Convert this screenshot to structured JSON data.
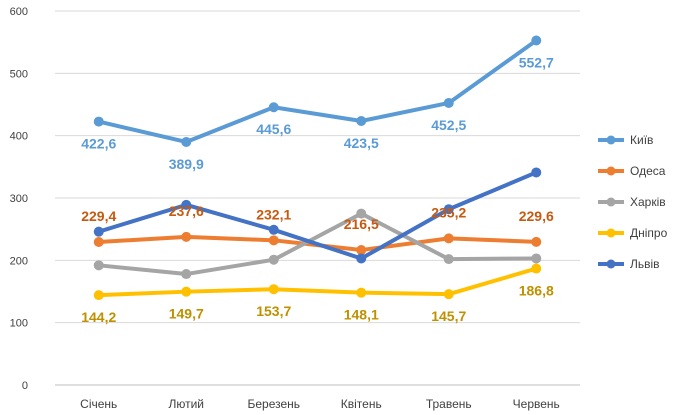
{
  "chart_data": {
    "type": "line",
    "title": "",
    "xlabel": "",
    "ylabel": "",
    "categories": [
      "Січень",
      "Лютий",
      "Березень",
      "Квітень",
      "Травень",
      "Червень"
    ],
    "ylim": [
      0,
      600
    ],
    "yticks": [
      0,
      100,
      200,
      300,
      400,
      500,
      600
    ],
    "grid": true,
    "legend_position": "right",
    "series": [
      {
        "name": "Київ",
        "color": "#5B9BD5",
        "values": [
          422.6,
          389.9,
          445.6,
          423.5,
          452.5,
          552.7
        ],
        "labels": [
          "422,6",
          "389,9",
          "445,6",
          "423,5",
          "452,5",
          "552,7"
        ]
      },
      {
        "name": "Одеса",
        "color": "#ED7D31",
        "values": [
          229.4,
          237.6,
          232.1,
          216.5,
          235.2,
          229.6
        ],
        "labels": [
          "229,4",
          "237,6",
          "232,1",
          "216,5",
          "235,2",
          "229,6"
        ]
      },
      {
        "name": "Харків",
        "color": "#A5A5A5",
        "values": [
          192,
          178,
          201,
          275,
          202,
          203
        ],
        "labels": []
      },
      {
        "name": "Дніпро",
        "color": "#FFC000",
        "values": [
          144.2,
          149.7,
          153.7,
          148.1,
          145.7,
          186.8
        ],
        "labels": [
          "144,2",
          "149,7",
          "153,7",
          "148,1",
          "145,7",
          "186,8"
        ]
      },
      {
        "name": "Львів",
        "color": "#4472C4",
        "values": [
          246,
          289,
          249,
          203,
          282,
          341
        ],
        "labels": []
      }
    ]
  }
}
